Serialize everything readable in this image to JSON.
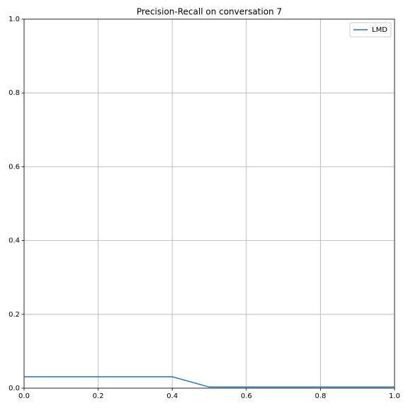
{
  "chart_data": {
    "type": "line",
    "title": "Precision-Recall on conversation 7",
    "x": [
      0,
      0.4,
      0.5,
      1
    ],
    "series": [
      {
        "name": "LMD",
        "color": "#1f77b4",
        "values": [
          0.031,
          0.031,
          0.003,
          0.003
        ]
      }
    ],
    "xlim": [
      0,
      1
    ],
    "ylim": [
      0,
      1
    ],
    "xticks": [
      {
        "value": 0,
        "label": "0.0"
      },
      0.2,
      0.4,
      0.6,
      0.8,
      {
        "value": 1,
        "label": "1.0"
      }
    ],
    "yticks": [
      {
        "value": 0,
        "label": "0.0"
      },
      0.2,
      0.4,
      0.6,
      0.8,
      {
        "value": 1,
        "label": "1.0"
      }
    ],
    "grid": true,
    "legend": "upper right"
  }
}
